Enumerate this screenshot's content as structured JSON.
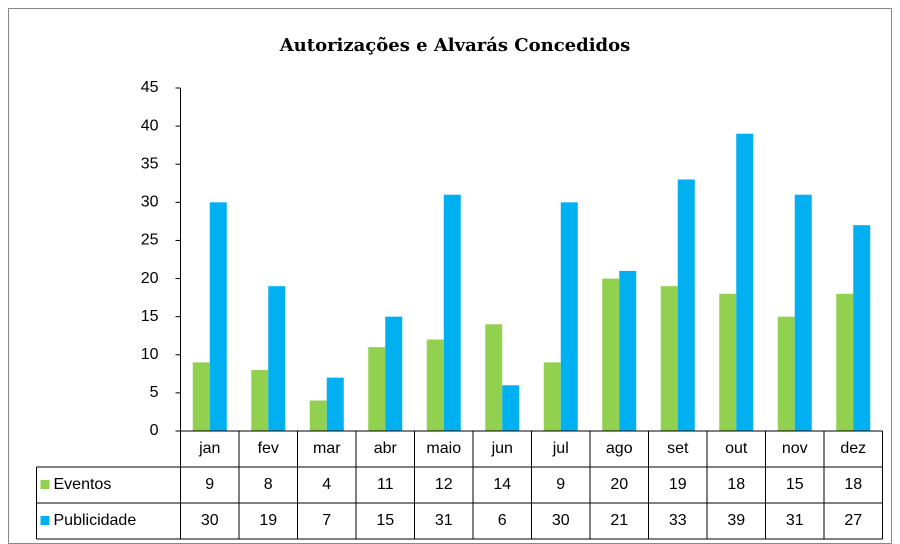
{
  "chart_data": {
    "type": "bar",
    "title": "Autorizações e Alvarás Concedidos",
    "categories": [
      "jan",
      "fev",
      "mar",
      "abr",
      "maio",
      "jun",
      "jul",
      "ago",
      "set",
      "out",
      "nov",
      "dez"
    ],
    "series": [
      {
        "name": "Eventos",
        "color": "#92d050",
        "values": [
          9,
          8,
          4,
          11,
          12,
          14,
          9,
          20,
          19,
          18,
          15,
          18
        ]
      },
      {
        "name": "Publicidade",
        "color": "#00b0f0",
        "values": [
          30,
          19,
          7,
          15,
          31,
          6,
          30,
          21,
          33,
          39,
          31,
          27
        ]
      }
    ],
    "ylim": [
      0,
      45
    ],
    "yticks": [
      0,
      5,
      10,
      15,
      20,
      25,
      30,
      35,
      40,
      45
    ],
    "grid": false
  }
}
